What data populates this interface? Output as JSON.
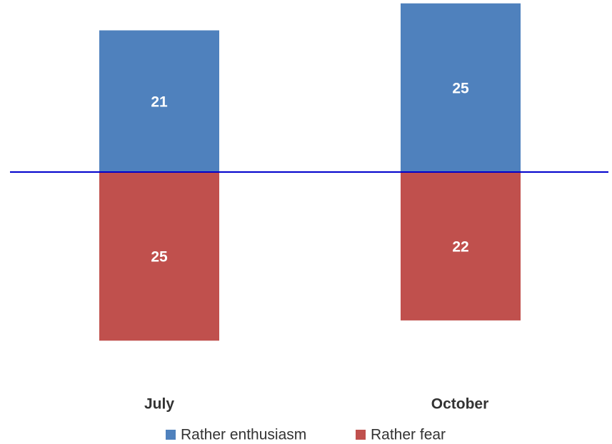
{
  "chart_data": {
    "type": "bar",
    "categories": [
      "July",
      "October"
    ],
    "series": [
      {
        "name": "Rather enthusiasm",
        "color": "#4f81bd",
        "values": [
          21,
          25
        ]
      },
      {
        "name": "Rather fear",
        "color": "#c0504d",
        "values": [
          -25,
          -22
        ],
        "value_labels": [
          "25",
          "22"
        ]
      }
    ],
    "ylim": [
      -26,
      25.5
    ],
    "zero_line_color": "#0000cc"
  }
}
